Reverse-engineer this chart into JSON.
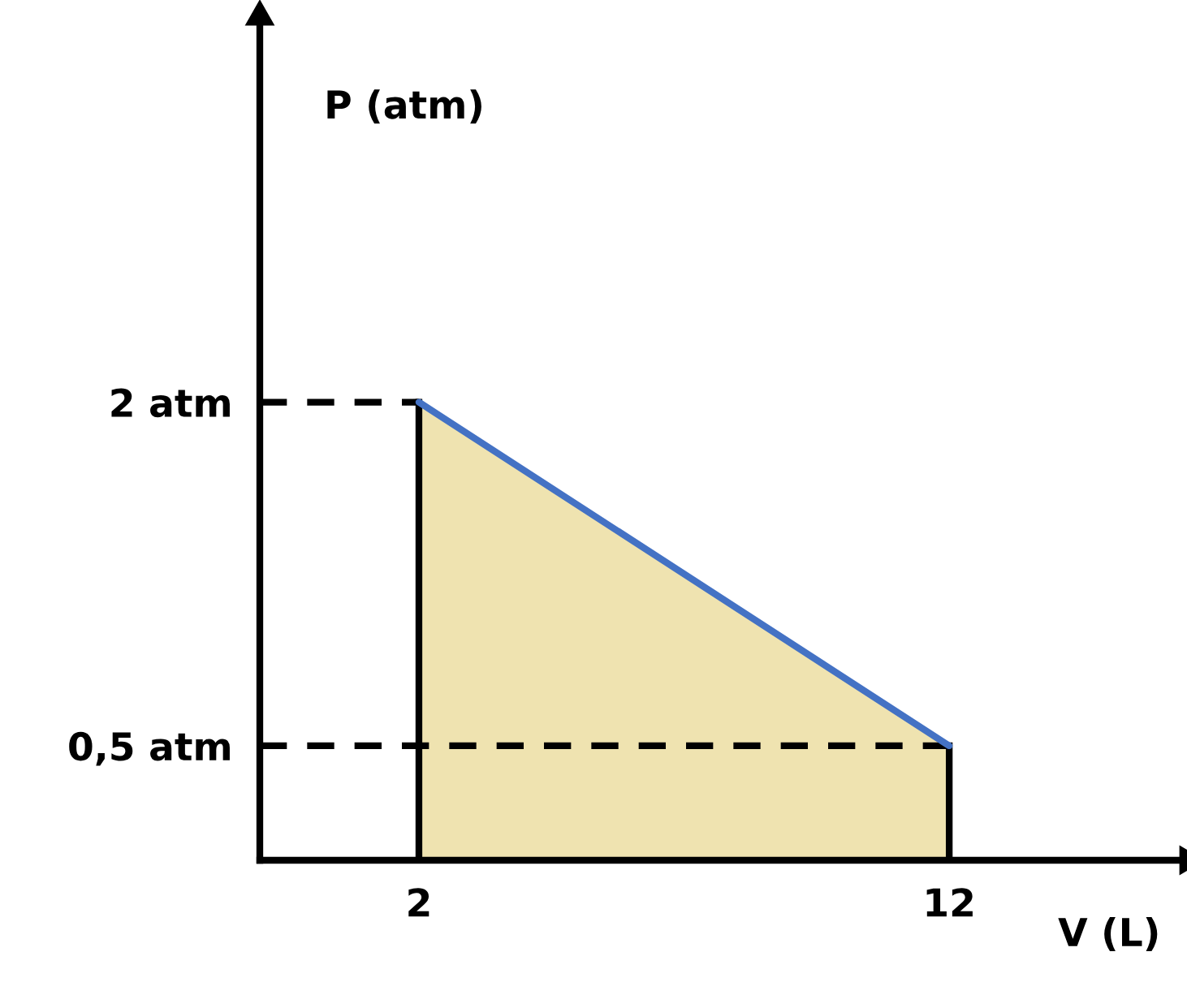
{
  "chart_data": {
    "type": "area",
    "xlabel": "V (L)",
    "ylabel": "P (atm)",
    "x": [
      2,
      12
    ],
    "series": [
      {
        "color": "#efe3b0",
        "values": [
          2,
          0.5
        ]
      },
      {
        "type": "line",
        "color": "#4472c4",
        "values": [
          2,
          0.5
        ]
      }
    ],
    "xlim": [
      -1,
      16.3
    ],
    "ylim": [
      0,
      3.65
    ],
    "xticks": [
      2,
      12
    ],
    "yticks": [
      {
        "value": 2,
        "label": "2 atm"
      },
      {
        "value": 0.5,
        "label": "0,5 atm"
      }
    ],
    "ref_lines": [
      {
        "axis": "y",
        "value": 2,
        "color": "#000000",
        "line_style": "dashed"
      },
      {
        "axis": "y",
        "value": 0.5,
        "color": "#000000",
        "line_style": "dashed"
      },
      {
        "axis": "x",
        "value": 2,
        "color": "#000000",
        "line_style": "solid"
      },
      {
        "axis": "x",
        "value": 12,
        "color": "#000000",
        "line_style": "solid"
      }
    ],
    "grid": false,
    "legend": false
  }
}
